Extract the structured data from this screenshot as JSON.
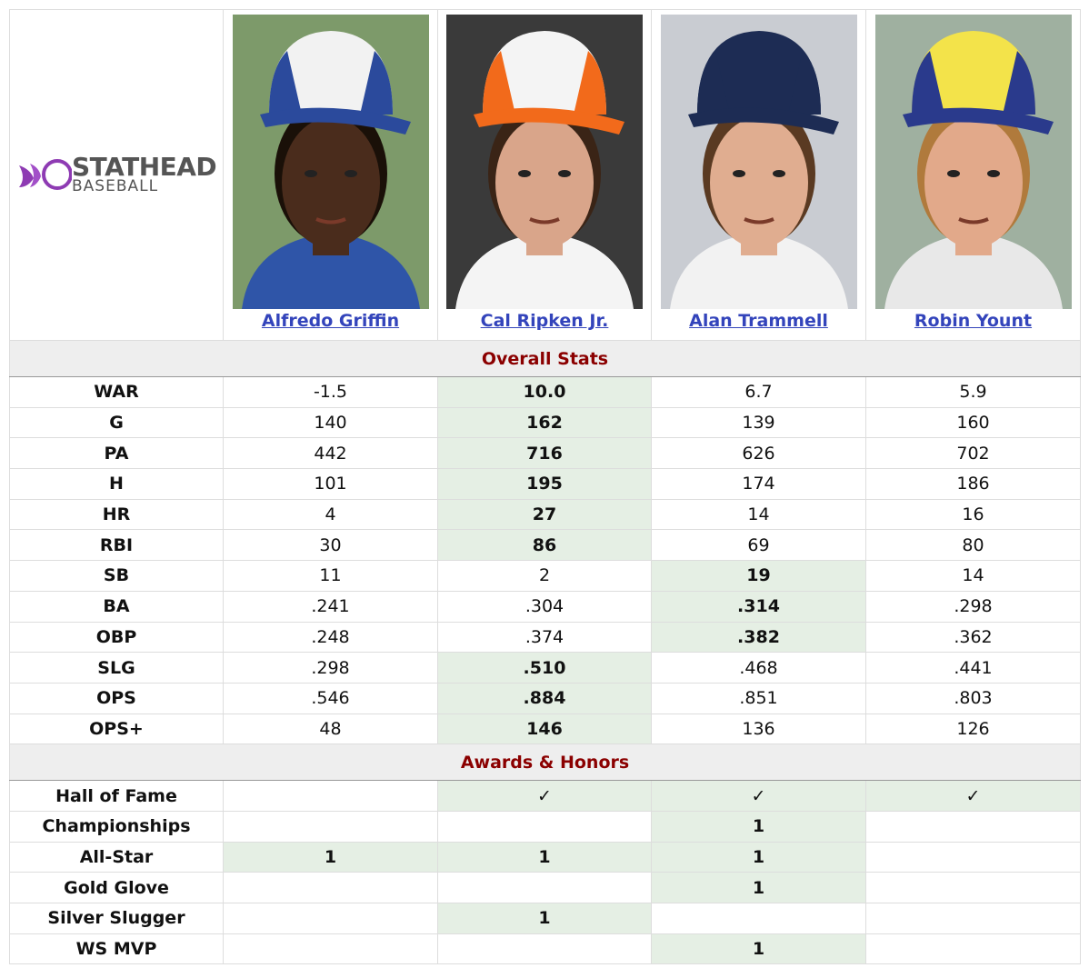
{
  "logo": {
    "brand": "STATHEAD",
    "product": "BASEBALL"
  },
  "players": [
    "Alfredo Griffin",
    "Cal Ripken Jr.",
    "Alan Trammell",
    "Robin Yount"
  ],
  "sections": [
    {
      "title": "Overall Stats",
      "rows": [
        {
          "label": "WAR",
          "cells": [
            "-1.5",
            "10.0",
            "6.7",
            "5.9"
          ],
          "highlight": [
            1
          ]
        },
        {
          "label": "G",
          "cells": [
            "140",
            "162",
            "139",
            "160"
          ],
          "highlight": [
            1
          ]
        },
        {
          "label": "PA",
          "cells": [
            "442",
            "716",
            "626",
            "702"
          ],
          "highlight": [
            1
          ]
        },
        {
          "label": "H",
          "cells": [
            "101",
            "195",
            "174",
            "186"
          ],
          "highlight": [
            1
          ]
        },
        {
          "label": "HR",
          "cells": [
            "4",
            "27",
            "14",
            "16"
          ],
          "highlight": [
            1
          ]
        },
        {
          "label": "RBI",
          "cells": [
            "30",
            "86",
            "69",
            "80"
          ],
          "highlight": [
            1
          ]
        },
        {
          "label": "SB",
          "cells": [
            "11",
            "2",
            "19",
            "14"
          ],
          "highlight": [
            2
          ]
        },
        {
          "label": "BA",
          "cells": [
            ".241",
            ".304",
            ".314",
            ".298"
          ],
          "highlight": [
            2
          ]
        },
        {
          "label": "OBP",
          "cells": [
            ".248",
            ".374",
            ".382",
            ".362"
          ],
          "highlight": [
            2
          ]
        },
        {
          "label": "SLG",
          "cells": [
            ".298",
            ".510",
            ".468",
            ".441"
          ],
          "highlight": [
            1
          ]
        },
        {
          "label": "OPS",
          "cells": [
            ".546",
            ".884",
            ".851",
            ".803"
          ],
          "highlight": [
            1
          ]
        },
        {
          "label": "OPS+",
          "cells": [
            "48",
            "146",
            "136",
            "126"
          ],
          "highlight": [
            1
          ]
        }
      ]
    },
    {
      "title": "Awards & Honors",
      "rows": [
        {
          "label": "Hall of Fame",
          "cells": [
            null,
            "✓",
            "✓",
            "✓"
          ],
          "highlight": [
            1,
            2,
            3
          ]
        },
        {
          "label": "Championships",
          "cells": [
            null,
            null,
            "1",
            null
          ],
          "highlight": [
            2
          ]
        },
        {
          "label": "All-Star",
          "cells": [
            "1",
            "1",
            "1",
            null
          ],
          "highlight": [
            0,
            1,
            2
          ]
        },
        {
          "label": "Gold Glove",
          "cells": [
            null,
            null,
            "1",
            null
          ],
          "highlight": [
            2
          ]
        },
        {
          "label": "Silver Slugger",
          "cells": [
            null,
            "1",
            null,
            null
          ],
          "highlight": [
            1
          ]
        },
        {
          "label": "WS MVP",
          "cells": [
            null,
            null,
            "1",
            null
          ],
          "highlight": [
            2
          ]
        }
      ]
    }
  ]
}
